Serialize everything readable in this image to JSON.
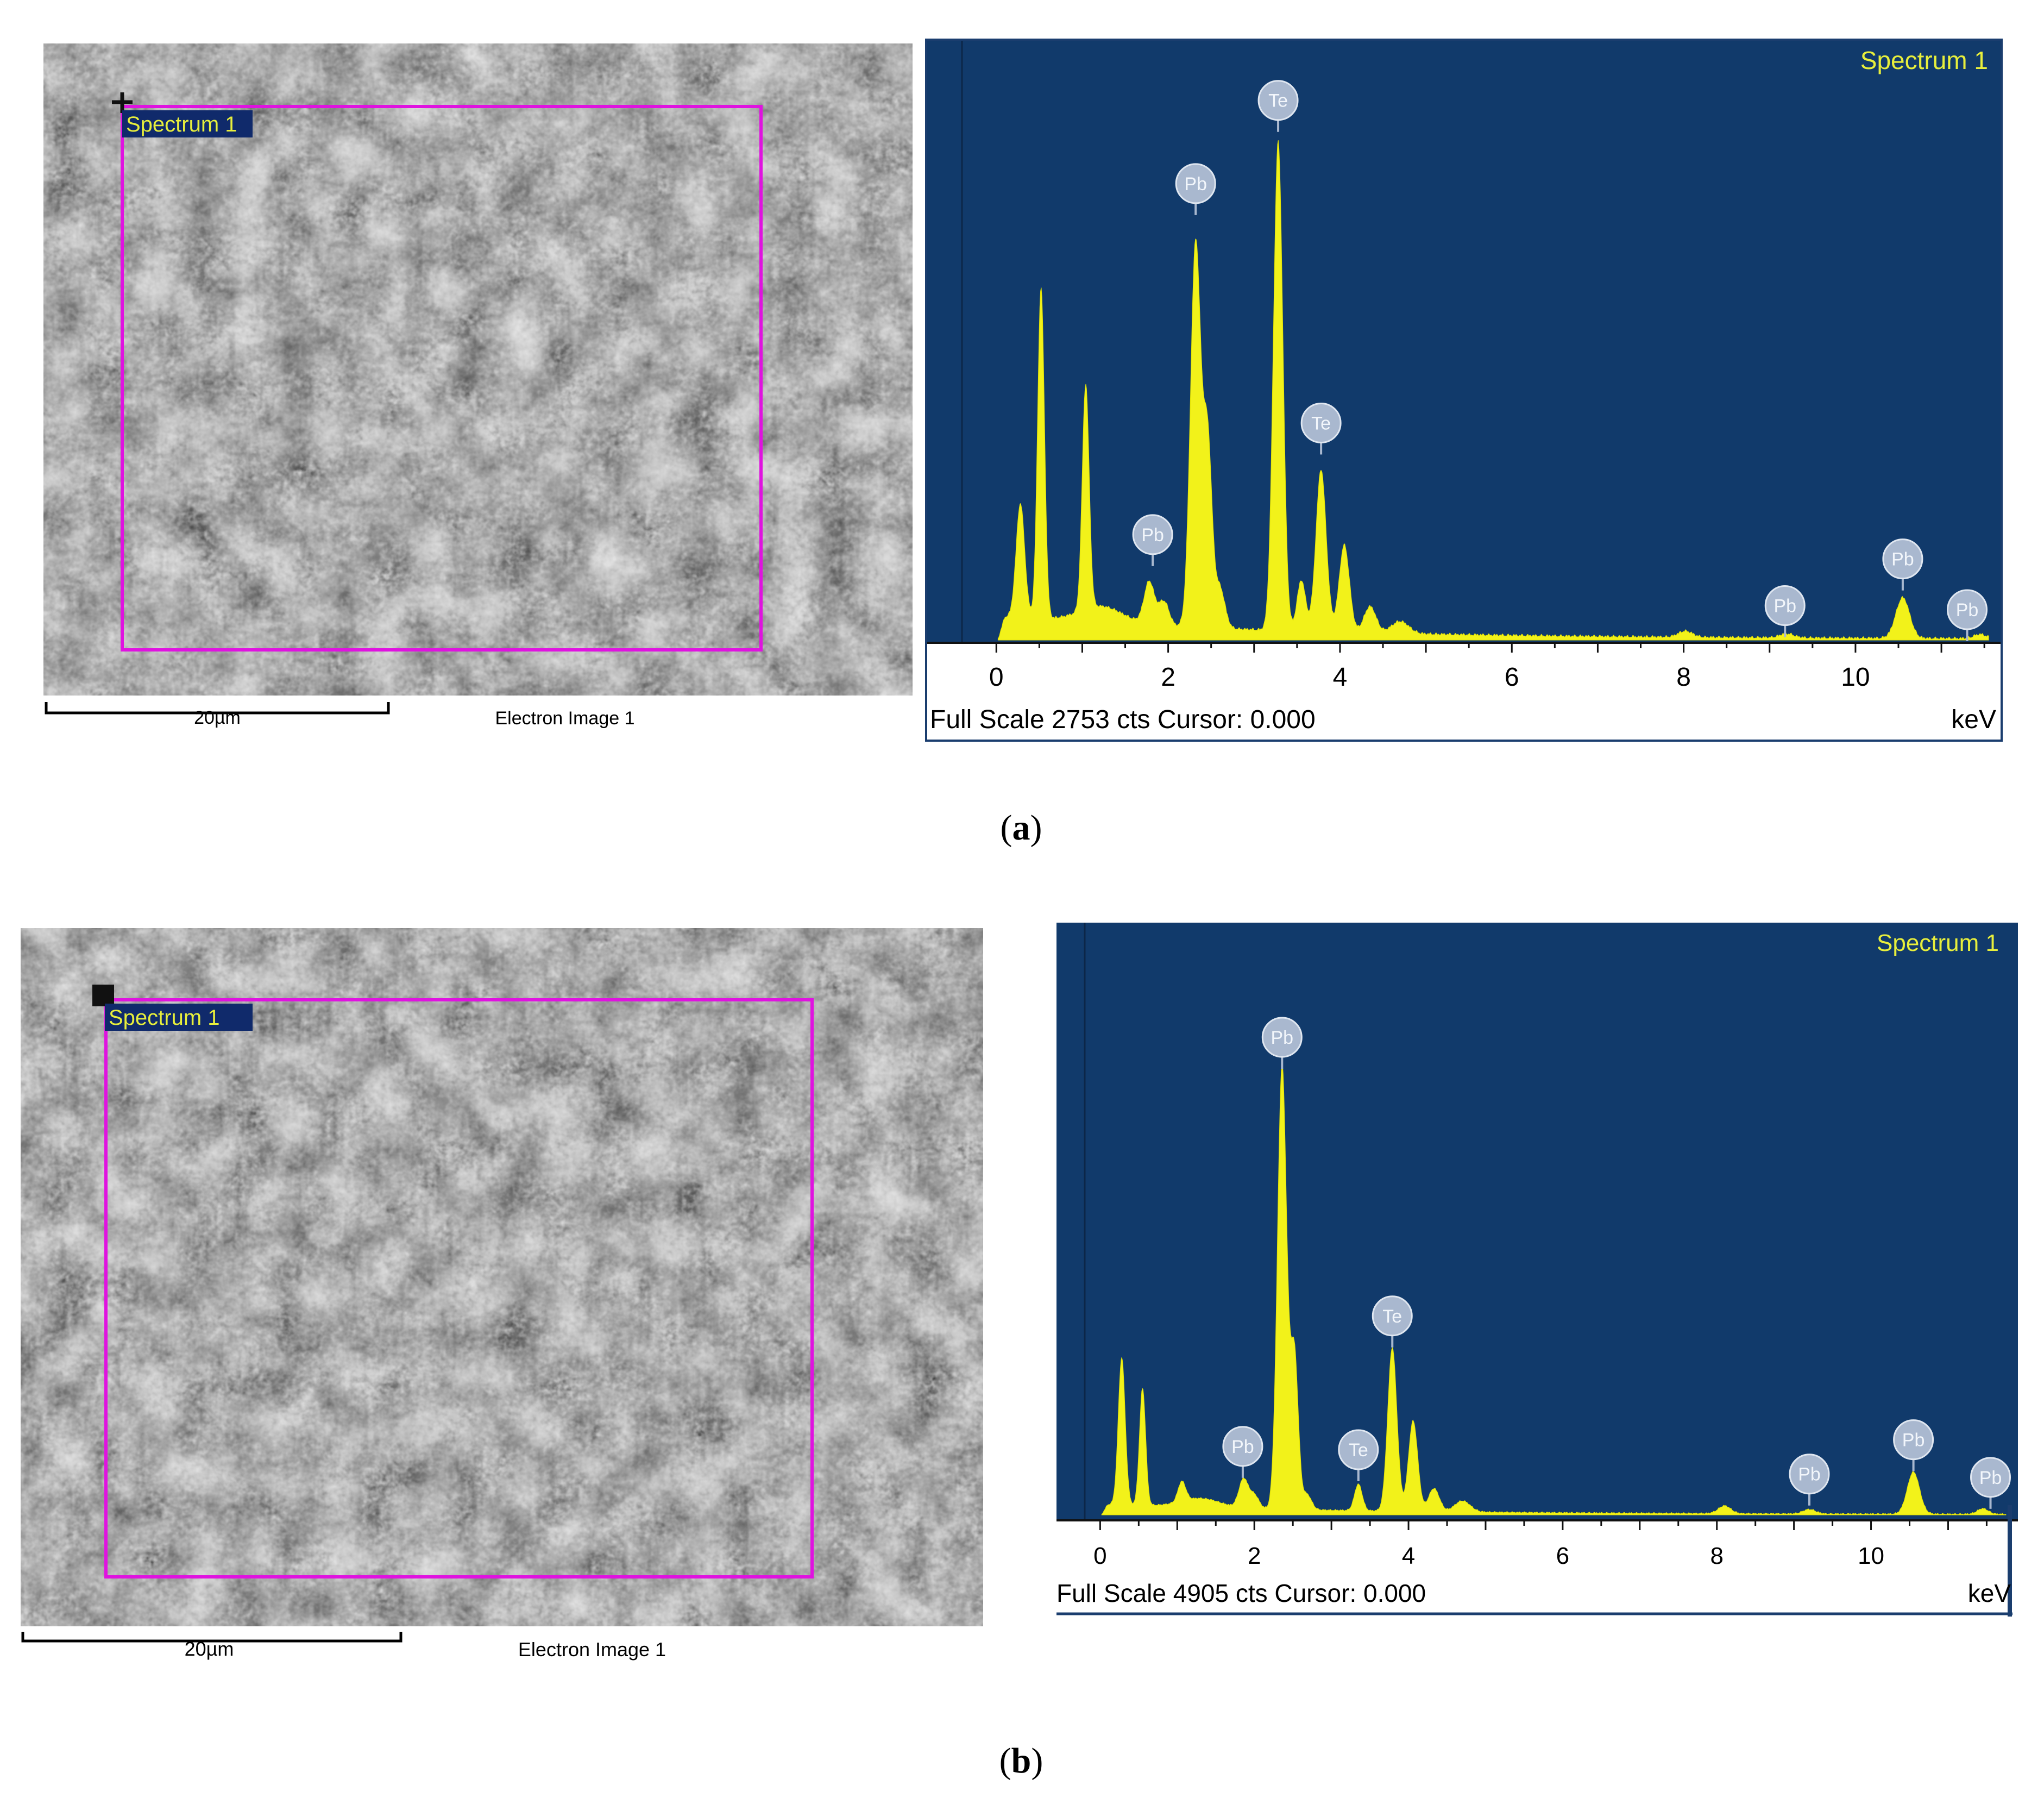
{
  "figure": {
    "colors": {
      "spectrum_bg": "#113a6b",
      "spectrum_fill": "#f2f21a",
      "label_yellow": "#e8ef3c",
      "roi_magenta": "#e012e0",
      "badge_fill": "#a9b8cf",
      "badge_text": "#f2f6fb",
      "sem_tag_bg": "#102a6b"
    },
    "panels": [
      {
        "label_open": "(",
        "label_letter": "a",
        "label_close": ")",
        "sem": {
          "roi_label": "Spectrum 1",
          "scale_label": "20µm",
          "image_caption": "Electron Image 1"
        },
        "spectrum": {
          "title": "Spectrum 1",
          "footer": "Full Scale 2753 cts Cursor: 0.000",
          "unit": "keV"
        }
      },
      {
        "label_open": "(",
        "label_letter": "b",
        "label_close": ")",
        "sem": {
          "roi_label": "Spectrum 1",
          "scale_label": "20µm",
          "image_caption": "Electron Image 1"
        },
        "spectrum": {
          "title": "Spectrum 1",
          "footer": "Full Scale 4905 cts Cursor: 0.000",
          "unit": "keV"
        }
      }
    ]
  },
  "chart_data": [
    {
      "type": "area",
      "xlabel": "",
      "x_unit": "keV",
      "title": "Spectrum 1",
      "xlim": [
        -0.4,
        11.6
      ],
      "x_ticks": [
        0,
        2,
        4,
        6,
        8,
        10
      ],
      "full_scale_counts": 2753,
      "cursor_keV": 0.0,
      "baseline_counts": 110,
      "peaks": [
        {
          "keV": 0.28,
          "counts": 560,
          "width": 0.05
        },
        {
          "keV": 0.52,
          "counts": 1630,
          "width": 0.04
        },
        {
          "keV": 1.04,
          "counts": 1110,
          "width": 0.04
        },
        {
          "keV": 1.22,
          "counts": 80,
          "width": 0.25
        },
        {
          "keV": 1.78,
          "counts": 210,
          "width": 0.06
        },
        {
          "keV": 1.95,
          "counts": 120,
          "width": 0.06
        },
        {
          "keV": 2.32,
          "counts": 1900,
          "width": 0.06
        },
        {
          "keV": 2.46,
          "counts": 900,
          "width": 0.05
        },
        {
          "keV": 2.6,
          "counts": 200,
          "width": 0.06
        },
        {
          "keV": 3.28,
          "counts": 2410,
          "width": 0.055
        },
        {
          "keV": 3.55,
          "counts": 250,
          "width": 0.05
        },
        {
          "keV": 3.78,
          "counts": 800,
          "width": 0.06
        },
        {
          "keV": 4.05,
          "counts": 430,
          "width": 0.06
        },
        {
          "keV": 4.35,
          "counts": 130,
          "width": 0.07
        },
        {
          "keV": 4.7,
          "counts": 60,
          "width": 0.1
        },
        {
          "keV": 8.02,
          "counts": 30,
          "width": 0.08
        },
        {
          "keV": 9.2,
          "counts": 20,
          "width": 0.08
        },
        {
          "keV": 10.55,
          "counts": 200,
          "width": 0.08
        },
        {
          "keV": 11.45,
          "counts": 20,
          "width": 0.07
        }
      ],
      "element_labels": [
        {
          "text": "Pb",
          "keV": 1.82,
          "counts": 520
        },
        {
          "text": "Pb",
          "keV": 2.32,
          "counts": 2250
        },
        {
          "text": "Te",
          "keV": 3.28,
          "counts": 2660
        },
        {
          "text": "Te",
          "keV": 3.78,
          "counts": 1070
        },
        {
          "text": "Pb",
          "keV": 9.18,
          "counts": 170
        },
        {
          "text": "Pb",
          "keV": 10.55,
          "counts": 400
        },
        {
          "text": "Pb",
          "keV": 11.3,
          "counts": 150
        }
      ]
    },
    {
      "type": "area",
      "xlabel": "",
      "x_unit": "keV",
      "title": "Spectrum 1",
      "xlim": [
        -0.2,
        11.8
      ],
      "x_ticks": [
        0,
        2,
        4,
        6,
        8,
        10
      ],
      "full_scale_counts": 4905,
      "cursor_keV": 0.0,
      "baseline_counts": 90,
      "peaks": [
        {
          "keV": 0.28,
          "counts": 1330,
          "width": 0.045
        },
        {
          "keV": 0.55,
          "counts": 1060,
          "width": 0.04
        },
        {
          "keV": 1.06,
          "counts": 180,
          "width": 0.05
        },
        {
          "keV": 1.3,
          "counts": 80,
          "width": 0.25
        },
        {
          "keV": 1.86,
          "counts": 260,
          "width": 0.06
        },
        {
          "keV": 2.0,
          "counts": 120,
          "width": 0.06
        },
        {
          "keV": 2.36,
          "counts": 4020,
          "width": 0.06
        },
        {
          "keV": 2.52,
          "counts": 1400,
          "width": 0.05
        },
        {
          "keV": 2.68,
          "counts": 140,
          "width": 0.06
        },
        {
          "keV": 3.35,
          "counts": 240,
          "width": 0.05
        },
        {
          "keV": 3.79,
          "counts": 1480,
          "width": 0.06
        },
        {
          "keV": 4.06,
          "counts": 820,
          "width": 0.06
        },
        {
          "keV": 4.33,
          "counts": 210,
          "width": 0.07
        },
        {
          "keV": 4.7,
          "counts": 100,
          "width": 0.1
        },
        {
          "keV": 8.1,
          "counts": 70,
          "width": 0.08
        },
        {
          "keV": 9.2,
          "counts": 40,
          "width": 0.08
        },
        {
          "keV": 10.55,
          "counts": 380,
          "width": 0.08
        },
        {
          "keV": 11.45,
          "counts": 50,
          "width": 0.07
        }
      ],
      "element_labels": [
        {
          "text": "Pb",
          "keV": 1.85,
          "counts": 620
        },
        {
          "text": "Pb",
          "keV": 2.36,
          "counts": 4320
        },
        {
          "text": "Te",
          "keV": 3.35,
          "counts": 590
        },
        {
          "text": "Te",
          "keV": 3.79,
          "counts": 1800
        },
        {
          "text": "Pb",
          "keV": 9.2,
          "counts": 370
        },
        {
          "text": "Pb",
          "keV": 10.55,
          "counts": 680
        },
        {
          "text": "Pb",
          "keV": 11.55,
          "counts": 340
        }
      ]
    }
  ]
}
